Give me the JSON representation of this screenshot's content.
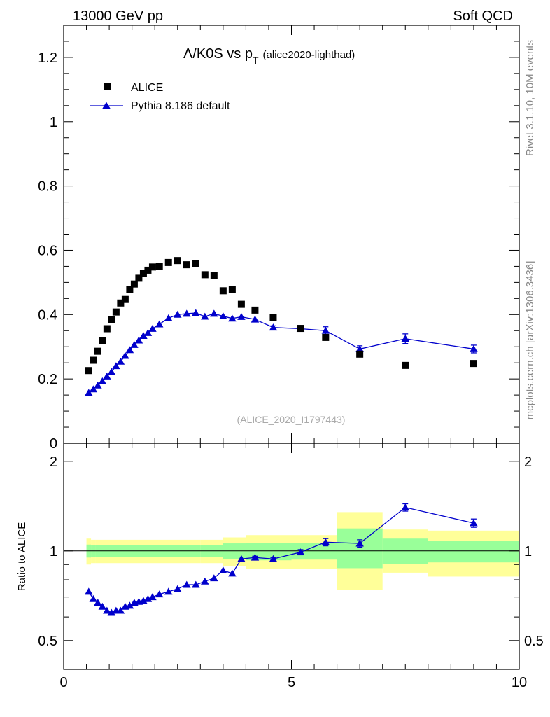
{
  "header": {
    "left": "13000 GeV pp",
    "right": "Soft QCD"
  },
  "side_text": {
    "rivet": "Rivet 3.1.10,  10M events",
    "mcplots": "mcplots.cern.ch [arXiv:1306.3436]"
  },
  "colors": {
    "data": "#000000",
    "mc": "#0000cc",
    "band_inner": "#99ff99",
    "band_outer": "#ffff99",
    "analysis_label": "#aaaaaa"
  },
  "chart_data": {
    "type": "scatter",
    "title_main": "Λ/K0S vs p",
    "title_sub": "T",
    "title_note": "(alice2020-lighthad)",
    "analysis_id": "(ALICE_2020_I1797443)",
    "xlabel": "",
    "ylabel_ratio": "Ratio to ALICE",
    "xlim": [
      0,
      10
    ],
    "ylim_main": [
      0,
      1.3
    ],
    "ylim_ratio": [
      0.4,
      2.3
    ],
    "x_ticks": [
      {
        "v": 0,
        "label": "0"
      },
      {
        "v": 5,
        "label": "5"
      },
      {
        "v": 10,
        "label": "10"
      }
    ],
    "y_ticks_main": [
      {
        "v": 0,
        "label": "0"
      },
      {
        "v": 0.2,
        "label": "0.2"
      },
      {
        "v": 0.4,
        "label": "0.4"
      },
      {
        "v": 0.6,
        "label": "0.6"
      },
      {
        "v": 0.8,
        "label": "0.8"
      },
      {
        "v": 1.0,
        "label": "1"
      },
      {
        "v": 1.2,
        "label": "1.2"
      }
    ],
    "y_ticks_ratio": [
      {
        "v": 0.5,
        "label": "0.5"
      },
      {
        "v": 1,
        "label": "1"
      },
      {
        "v": 2,
        "label": "2"
      }
    ],
    "legend": [
      {
        "name": "ALICE",
        "marker": "square"
      },
      {
        "name": "Pythia 8.186 default",
        "marker": "triangle"
      }
    ],
    "x": [
      0.55,
      0.65,
      0.75,
      0.85,
      0.95,
      1.05,
      1.15,
      1.25,
      1.35,
      1.45,
      1.55,
      1.65,
      1.75,
      1.85,
      1.95,
      2.1,
      2.3,
      2.5,
      2.7,
      2.9,
      3.1,
      3.3,
      3.5,
      3.7,
      3.9,
      4.2,
      4.6,
      5.2,
      5.75,
      6.5,
      7.5,
      9.0
    ],
    "series": [
      {
        "name": "ALICE",
        "values": [
          0.226,
          0.258,
          0.286,
          0.318,
          0.356,
          0.385,
          0.408,
          0.436,
          0.447,
          0.478,
          0.495,
          0.513,
          0.527,
          0.538,
          0.548,
          0.55,
          0.562,
          0.568,
          0.555,
          0.558,
          0.524,
          0.522,
          0.474,
          0.478,
          0.432,
          0.414,
          0.39,
          0.357,
          0.329,
          0.277,
          0.242,
          0.248
        ]
      },
      {
        "name": "Pythia 8.186 default",
        "values": [
          0.157,
          0.168,
          0.18,
          0.193,
          0.208,
          0.222,
          0.24,
          0.254,
          0.272,
          0.29,
          0.306,
          0.32,
          0.334,
          0.343,
          0.356,
          0.37,
          0.389,
          0.4,
          0.403,
          0.405,
          0.394,
          0.403,
          0.395,
          0.388,
          0.393,
          0.385,
          0.36,
          0.356,
          0.35,
          0.293,
          0.325,
          0.293
        ],
        "errors": [
          0.003,
          0.003,
          0.003,
          0.003,
          0.003,
          0.003,
          0.003,
          0.003,
          0.003,
          0.003,
          0.003,
          0.003,
          0.003,
          0.003,
          0.003,
          0.003,
          0.003,
          0.003,
          0.003,
          0.003,
          0.003,
          0.003,
          0.003,
          0.003,
          0.003,
          0.004,
          0.005,
          0.006,
          0.012,
          0.01,
          0.015,
          0.012
        ]
      }
    ],
    "ratio_values": [
      0.73,
      0.69,
      0.67,
      0.65,
      0.63,
      0.62,
      0.63,
      0.63,
      0.65,
      0.655,
      0.67,
      0.675,
      0.68,
      0.69,
      0.7,
      0.715,
      0.73,
      0.745,
      0.77,
      0.77,
      0.79,
      0.81,
      0.86,
      0.84,
      0.94,
      0.95,
      0.94,
      0.99,
      1.07,
      1.06,
      1.4,
      1.24
    ],
    "ratio_errors": [
      0.005,
      0.005,
      0.005,
      0.005,
      0.005,
      0.005,
      0.005,
      0.005,
      0.005,
      0.005,
      0.005,
      0.005,
      0.005,
      0.005,
      0.005,
      0.005,
      0.005,
      0.005,
      0.005,
      0.005,
      0.005,
      0.005,
      0.005,
      0.005,
      0.005,
      0.01,
      0.01,
      0.02,
      0.03,
      0.03,
      0.04,
      0.04
    ],
    "band_bins": [
      {
        "x0": 0.5,
        "x1": 0.6,
        "inner": [
          0.95,
          1.05
        ],
        "outer": [
          0.9,
          1.1
        ]
      },
      {
        "x0": 0.6,
        "x1": 0.7,
        "inner": [
          0.955,
          1.045
        ],
        "outer": [
          0.91,
          1.09
        ]
      },
      {
        "x0": 0.7,
        "x1": 2.0,
        "inner": [
          0.955,
          1.045
        ],
        "outer": [
          0.91,
          1.09
        ]
      },
      {
        "x0": 2.0,
        "x1": 3.0,
        "inner": [
          0.955,
          1.045
        ],
        "outer": [
          0.91,
          1.09
        ]
      },
      {
        "x0": 3.0,
        "x1": 3.5,
        "inner": [
          0.955,
          1.045
        ],
        "outer": [
          0.91,
          1.09
        ]
      },
      {
        "x0": 3.5,
        "x1": 4.0,
        "inner": [
          0.94,
          1.06
        ],
        "outer": [
          0.89,
          1.11
        ]
      },
      {
        "x0": 4.0,
        "x1": 5.0,
        "inner": [
          0.93,
          1.065
        ],
        "outer": [
          0.87,
          1.13
        ]
      },
      {
        "x0": 5.0,
        "x1": 6.0,
        "inner": [
          0.935,
          1.065
        ],
        "outer": [
          0.87,
          1.13
        ]
      },
      {
        "x0": 6.0,
        "x1": 7.0,
        "inner": [
          0.875,
          1.19
        ],
        "outer": [
          0.74,
          1.35
        ]
      },
      {
        "x0": 7.0,
        "x1": 8.0,
        "inner": [
          0.905,
          1.1
        ],
        "outer": [
          0.845,
          1.18
        ]
      },
      {
        "x0": 8.0,
        "x1": 10.0,
        "inner": [
          0.915,
          1.08
        ],
        "outer": [
          0.82,
          1.17
        ]
      }
    ]
  }
}
